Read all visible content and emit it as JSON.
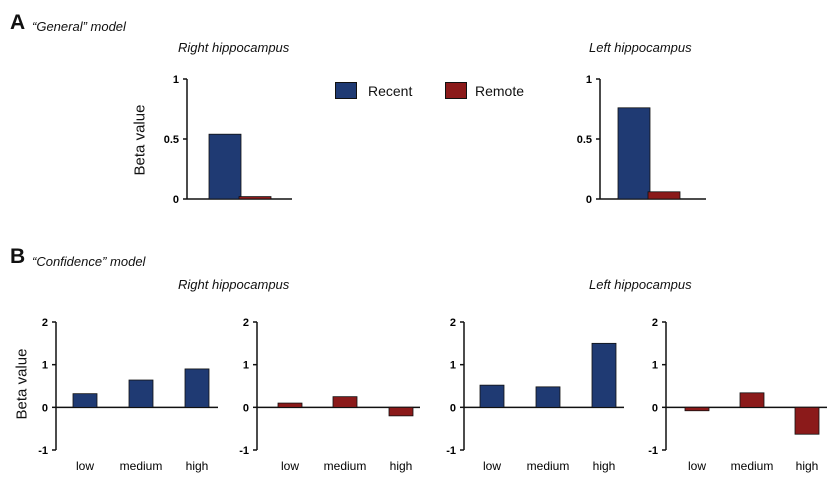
{
  "colors": {
    "recent": "#1f3a73",
    "remote": "#8b1a1a",
    "axis": "#111111"
  },
  "panel_a": {
    "letter": "A",
    "model": "“General” model"
  },
  "panel_b": {
    "letter": "B",
    "model": "“Confidence” model"
  },
  "legend": {
    "recent": "Recent",
    "remote": "Remote"
  },
  "chart_data": [
    {
      "type": "bar",
      "title": "Right hippocampus",
      "ylabel": "Beta value",
      "ylim": [
        0,
        1
      ],
      "yticks": [
        "0",
        "0.5",
        "1"
      ],
      "categories": [
        "Recent",
        "Remote"
      ],
      "series": [
        {
          "name": "Recent",
          "values": [
            0.54,
            null
          ]
        },
        {
          "name": "Remote",
          "values": [
            null,
            0.02
          ]
        }
      ]
    },
    {
      "type": "bar",
      "title": "Left hippocampus",
      "ylabel": "",
      "ylim": [
        0,
        1
      ],
      "yticks": [
        "0",
        "0.5",
        "1"
      ],
      "categories": [
        "Recent",
        "Remote"
      ],
      "series": [
        {
          "name": "Recent",
          "values": [
            0.76,
            null
          ]
        },
        {
          "name": "Remote",
          "values": [
            null,
            0.06
          ]
        }
      ]
    },
    {
      "type": "bar",
      "title": "Right hippocampus",
      "ylabel": "Beta value",
      "ylim": [
        -1,
        2
      ],
      "yticks": [
        "-1",
        "0",
        "1",
        "2"
      ],
      "categories": [
        "low",
        "medium",
        "high"
      ],
      "series": [
        {
          "name": "Recent",
          "values": [
            0.32,
            0.64,
            0.9
          ]
        }
      ]
    },
    {
      "type": "bar",
      "title": "",
      "ylabel": "",
      "ylim": [
        -1,
        2
      ],
      "yticks": [
        "-1",
        "0",
        "1",
        "2"
      ],
      "categories": [
        "low",
        "medium",
        "high"
      ],
      "series": [
        {
          "name": "Remote",
          "values": [
            0.1,
            0.25,
            -0.2
          ]
        }
      ]
    },
    {
      "type": "bar",
      "title": "Left hippocampus",
      "ylabel": "",
      "ylim": [
        -1,
        2
      ],
      "yticks": [
        "-1",
        "0",
        "1",
        "2"
      ],
      "categories": [
        "low",
        "medium",
        "high"
      ],
      "series": [
        {
          "name": "Recent",
          "values": [
            0.52,
            0.48,
            1.5
          ]
        }
      ]
    },
    {
      "type": "bar",
      "title": "",
      "ylabel": "",
      "ylim": [
        -1,
        2
      ],
      "yticks": [
        "-1",
        "0",
        "1",
        "2"
      ],
      "categories": [
        "low",
        "medium",
        "high"
      ],
      "series": [
        {
          "name": "Remote",
          "values": [
            -0.08,
            0.34,
            -0.63
          ]
        }
      ]
    }
  ]
}
